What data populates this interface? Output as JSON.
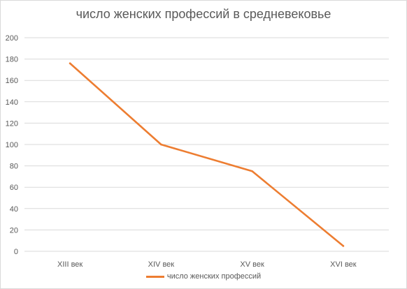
{
  "chart_data": {
    "type": "line",
    "title": "число женских профессий в средневековье",
    "categories": [
      "XIII век",
      "XIV век",
      "XV век",
      "XVI век"
    ],
    "series": [
      {
        "name": "число женских профессий",
        "values": [
          176,
          100,
          75,
          5
        ],
        "color": "#ed7d31"
      }
    ],
    "ylim": [
      0,
      200
    ],
    "yticks": [
      0,
      20,
      40,
      60,
      80,
      100,
      120,
      140,
      160,
      180,
      200
    ],
    "grid": true,
    "legend": "bottom",
    "xlabel": "",
    "ylabel": ""
  }
}
